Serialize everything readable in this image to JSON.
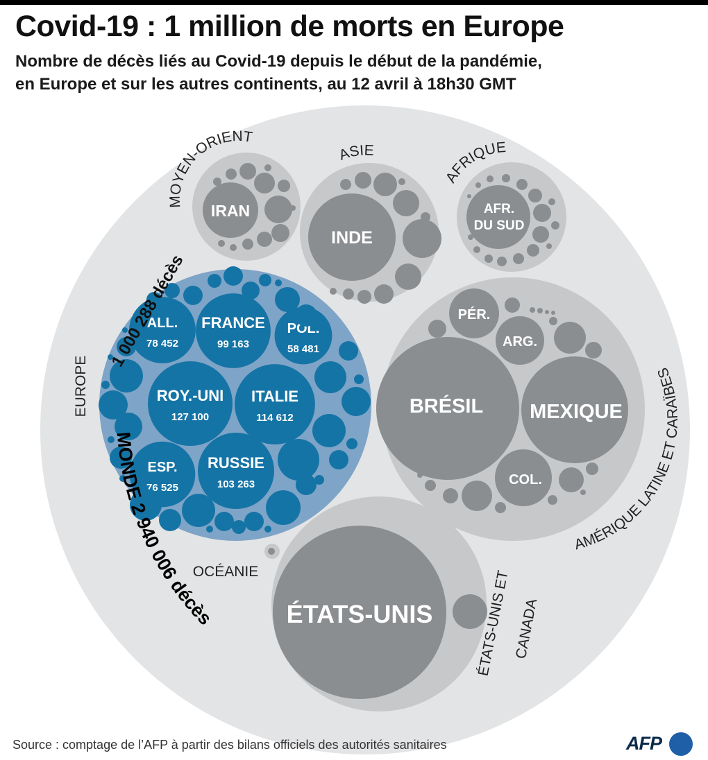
{
  "title": "Covid-19 : 1 million de morts en Europe",
  "subtitle_line1": "Nombre de décès liés au Covid-19 depuis le début de la pandémie,",
  "subtitle_line2": "en Europe et sur les autres continents, au 12 avril à 18h30 GMT",
  "source": "Source : comptage de l’AFP à partir des bilans officiels des autorités sanitaires",
  "logo": "AFP",
  "colors": {
    "europe_country": "#1574a6",
    "europe_bg": "#7ea4c7",
    "continent_bg": "#c6c8ca",
    "country_gray": "#8b8e91",
    "world_bg": "#e3e4e5"
  },
  "labels": {
    "monde": "MONDE 2 940 006 décès",
    "europe_total": "1 000 288 décès",
    "europe": "EUROPE",
    "moyen_orient": "MOYEN-ORIENT",
    "asie": "ASIE",
    "afrique": "AFRIQUE",
    "amerique_latine": "AMÉRIQUE LATINE ET CARAÏBES",
    "oceanie": "OCÉANIE",
    "usa_canada_1": "ÉTATS-UNIS ET",
    "usa_canada_2": "CANADA"
  },
  "chart_data": {
    "type": "bubble",
    "world_total": 2940006,
    "europe_total": 1000288,
    "europe_countries": [
      {
        "name": "All.",
        "value": 78452,
        "value_label": "78 452"
      },
      {
        "name": "France",
        "value": 99163,
        "value_label": "99 163"
      },
      {
        "name": "Pol.",
        "value": 58481,
        "value_label": "58 481"
      },
      {
        "name": "Roy.-Uni",
        "value": 127100,
        "value_label": "127 100"
      },
      {
        "name": "Italie",
        "value": 114612,
        "value_label": "114 612"
      },
      {
        "name": "Esp.",
        "value": 76525,
        "value_label": "76 525"
      },
      {
        "name": "Russie",
        "value": 103263,
        "value_label": "103 263"
      }
    ],
    "other_labeled_countries": [
      "Iran",
      "Inde",
      "Afr. du Sud",
      "Pér.",
      "Arg.",
      "Brésil",
      "Mexique",
      "Col.",
      "États-Unis"
    ],
    "regions": [
      "Europe",
      "Moyen-Orient",
      "Asie",
      "Afrique",
      "Amérique latine et Caraïbes",
      "Océanie",
      "États-Unis et Canada"
    ]
  }
}
